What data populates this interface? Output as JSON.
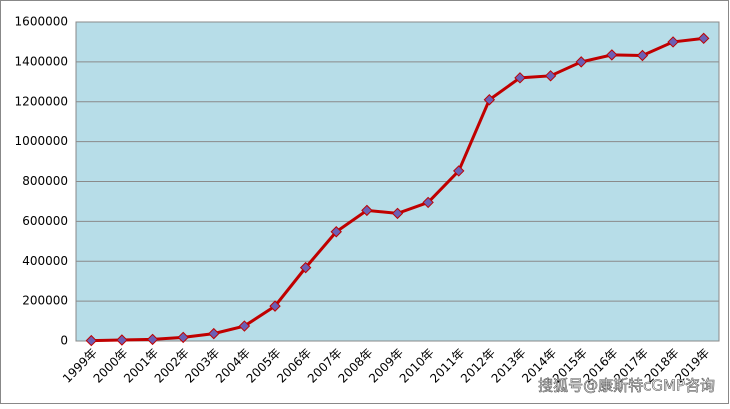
{
  "chart_data": {
    "type": "line",
    "categories": [
      "1999年",
      "2000年",
      "2001年",
      "2002年",
      "2003年",
      "2004年",
      "2005年",
      "2006年",
      "2007年",
      "2008年",
      "2009年",
      "2010年",
      "2011年",
      "2012年",
      "2013年",
      "2014年",
      "2015年",
      "2016年",
      "2017年",
      "2018年",
      "2019年"
    ],
    "series": [
      {
        "color": "#c00000",
        "marker_color": "#6b5fb5",
        "values": [
          2000,
          5000,
          8000,
          18000,
          37000,
          75000,
          175000,
          368000,
          548000,
          655000,
          640000,
          695000,
          853000,
          1210000,
          1320000,
          1330000,
          1400000,
          1435000,
          1432000,
          1500000,
          1518000
        ]
      }
    ],
    "ylim": [
      0,
      1600000
    ],
    "yticks": [
      0,
      200000,
      400000,
      600000,
      800000,
      1000000,
      1200000,
      1400000,
      1600000
    ],
    "grid": true,
    "plot_background": "#b7dde8",
    "watermark": "搜狐号@康斯特cGMP咨询"
  }
}
